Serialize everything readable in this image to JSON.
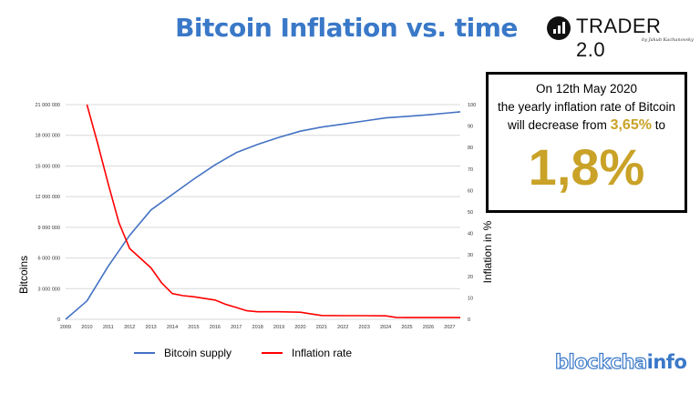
{
  "header": {
    "title": "Bitcoin Inflation vs. time"
  },
  "brand": {
    "name": "TRADER 2.0",
    "byline": "by Jakub Kachanovsky"
  },
  "callout": {
    "line1": "On 12th May 2020",
    "line2": "the yearly inflation rate of Bitcoin",
    "line3_prefix": "will decrease from ",
    "line3_old_rate": "3,65%",
    "line3_suffix": " to",
    "new_rate": "1,8%"
  },
  "footer": {
    "logo_part1": "blockcha",
    "logo_part2": "info"
  },
  "colors": {
    "title": "#3a78c8",
    "supply": "#4472c4",
    "inflation": "#ff0000",
    "highlight": "#c9a227"
  },
  "chart_data": {
    "type": "line",
    "x": [
      2009,
      2010,
      2011,
      2012,
      2013,
      2014,
      2015,
      2016,
      2017,
      2018,
      2019,
      2020,
      2021,
      2022,
      2023,
      2024,
      2025,
      2026,
      2027
    ],
    "x_tick_labels": [
      "2009",
      "2010",
      "2011",
      "2012",
      "2013",
      "2014",
      "2015",
      "2016",
      "2017",
      "2018",
      "2019",
      "2020",
      "2021",
      "2022",
      "2023",
      "2024",
      "2025",
      "2026",
      "2027"
    ],
    "series": [
      {
        "name": "Bitcoin supply",
        "axis": "left",
        "color": "#4472c4",
        "points": [
          [
            2009,
            0
          ],
          [
            2010,
            1800000
          ],
          [
            2011,
            5200000
          ],
          [
            2012,
            8200000
          ],
          [
            2013,
            10700000
          ],
          [
            2014,
            12200000
          ],
          [
            2015,
            13700000
          ],
          [
            2016,
            15100000
          ],
          [
            2017,
            16300000
          ],
          [
            2018,
            17100000
          ],
          [
            2019,
            17800000
          ],
          [
            2020,
            18400000
          ],
          [
            2021,
            18800000
          ],
          [
            2022,
            19100000
          ],
          [
            2023,
            19400000
          ],
          [
            2024,
            19700000
          ],
          [
            2025,
            19850000
          ],
          [
            2026,
            20000000
          ],
          [
            2027,
            20200000
          ],
          [
            2027.5,
            20300000
          ]
        ]
      },
      {
        "name": "Inflation rate",
        "axis": "right",
        "color": "#ff0000",
        "points": [
          [
            2010,
            100
          ],
          [
            2010.5,
            82
          ],
          [
            2011,
            63
          ],
          [
            2011.5,
            45
          ],
          [
            2012,
            33
          ],
          [
            2013,
            24
          ],
          [
            2013.5,
            17
          ],
          [
            2014,
            12
          ],
          [
            2014.5,
            11
          ],
          [
            2015,
            10.5
          ],
          [
            2016,
            9
          ],
          [
            2016.5,
            7
          ],
          [
            2017,
            5.5
          ],
          [
            2017.5,
            4
          ],
          [
            2018,
            3.5
          ],
          [
            2019,
            3.5
          ],
          [
            2020,
            3.3
          ],
          [
            2020.5,
            2.5
          ],
          [
            2021,
            1.8
          ],
          [
            2022,
            1.7
          ],
          [
            2023,
            1.7
          ],
          [
            2024,
            1.6
          ],
          [
            2024.5,
            0.9
          ],
          [
            2025,
            0.8
          ],
          [
            2026,
            0.8
          ],
          [
            2027,
            0.8
          ],
          [
            2027.5,
            0.8
          ]
        ]
      }
    ],
    "left_axis": {
      "label": "Bitcoins",
      "ylim": [
        0,
        21000000
      ],
      "ticks": [
        "0",
        "3 000 000",
        "6 000 000",
        "9 000 000",
        "12 000 000",
        "15 000 000",
        "18 000 000",
        "21 000 000"
      ]
    },
    "right_axis": {
      "label": "Inflation in %",
      "ylim": [
        0,
        100
      ],
      "ticks": [
        "0",
        "10",
        "20",
        "30",
        "40",
        "50",
        "60",
        "70",
        "80",
        "90",
        "100"
      ]
    },
    "xlim": [
      2009,
      2027.5
    ],
    "grid": true,
    "legend_position": "bottom"
  }
}
